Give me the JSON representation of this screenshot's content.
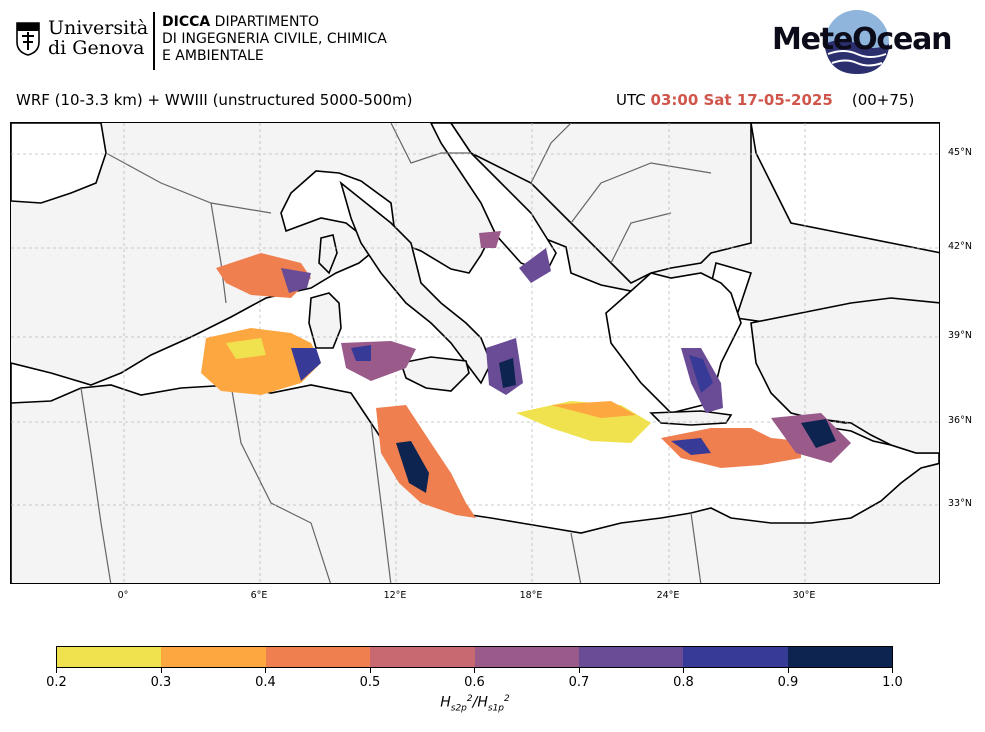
{
  "header": {
    "unige_logo_text": "Università\ndi Genova",
    "dicca_bold": "DICCA",
    "dicca_text_1": " DIPARTIMENTO",
    "dicca_text_2": "DI INGEGNERIA CIVILE, CHIMICA",
    "dicca_text_3": "E AMBIENTALE",
    "meteo_logo_text": "MeteOcean",
    "model_description": "WRF (10-3.3 km) + WWIII (unstructured 5000-500m)",
    "utc_prefix": "UTC",
    "utc_time": "03:00 Sat 17-05-2025",
    "forecast_offset": "(00+75)"
  },
  "map": {
    "lat_labels": [
      "45°N",
      "42°N",
      "39°N",
      "36°N",
      "33°N"
    ],
    "lon_labels": [
      "0°",
      "6°E",
      "12°E",
      "18°E",
      "24°E",
      "30°E"
    ],
    "colors": {
      "land": "#f4f4f4",
      "sea": "#ffffff",
      "coast": "#000000",
      "border": "#666666",
      "grid": "#bbbbbb"
    }
  },
  "colorbar": {
    "ticks": [
      "0.2",
      "0.3",
      "0.4",
      "0.5",
      "0.6",
      "0.7",
      "0.8",
      "0.9",
      "1.0"
    ],
    "colors": [
      "#f0e24e",
      "#fda741",
      "#f07f4f",
      "#c86870",
      "#9a5a8a",
      "#6a4c96",
      "#383a98",
      "#0d2451"
    ],
    "label_main": "H",
    "label_sub_num": "s2p",
    "label_sub_den": "s1p",
    "label_sup": "2"
  }
}
